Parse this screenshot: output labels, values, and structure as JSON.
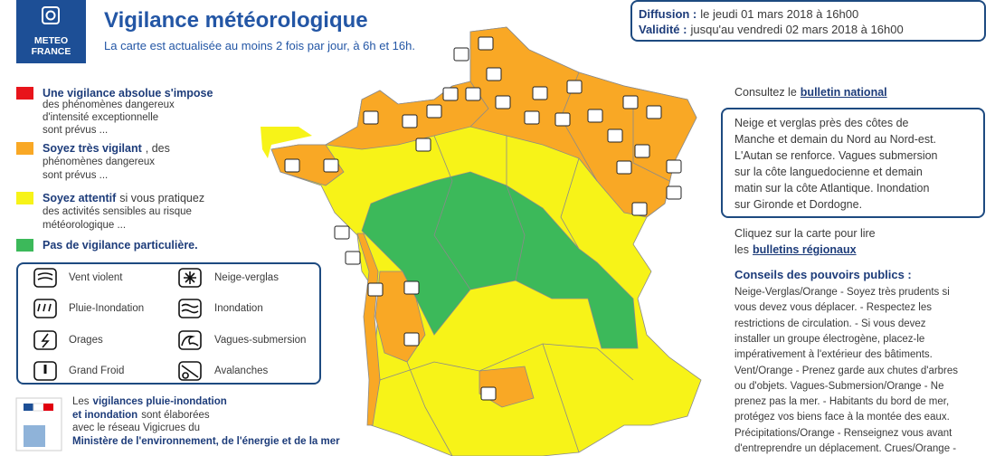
{
  "header": {
    "logo": [
      "METEO",
      "FRANCE"
    ],
    "title": "Vigilance météorologique",
    "subtitle": "La carte est actualisée au moins 2 fois par jour, à 6h et 16h."
  },
  "validity": [
    [
      {
        "text": "Diffusion :",
        "bold": true
      },
      {
        "text": "le jeudi 01 mars 2018 à 16h00"
      }
    ],
    [
      {
        "text": "Validité :",
        "bold": true
      },
      {
        "text": "jusqu'au vendredi 02 mars 2018 à 16h00"
      }
    ]
  ],
  "levels": [
    {
      "color": "#e8141b",
      "lines": [
        [
          {
            "text": "Une vigilance absolue s'impose",
            "bold": true
          }
        ],
        [
          {
            "text": "des phénomènes dangereux"
          }
        ],
        [
          {
            "text": "d'intensité exceptionnelle"
          }
        ],
        [
          {
            "text": "sont prévus ..."
          }
        ]
      ]
    },
    {
      "color": "#f9a825",
      "lines": [
        [
          {
            "text": "Soyez très vigilant",
            "bold": true
          },
          {
            "text": ", des"
          }
        ],
        [
          {
            "text": "phénomènes dangereux"
          }
        ],
        [
          {
            "text": "sont prévus ..."
          }
        ]
      ]
    },
    {
      "color": "#f7f318",
      "lines": [
        [
          {
            "text": "Soyez attentif",
            "bold": true
          },
          {
            "text": "si vous pratiquez"
          }
        ],
        [
          {
            "text": "des activités sensibles au risque"
          }
        ],
        [
          {
            "text": "météorologique ..."
          }
        ]
      ]
    },
    {
      "color": "#3cb95a",
      "lines": [
        [
          {
            "text": "Pas de vigilance particulière.",
            "bold": true
          }
        ]
      ]
    }
  ],
  "pictograms": [
    "Vent violent",
    "Pluie-Inondation",
    "Orages",
    "Grand Froid",
    "Neige-verglas",
    "Inondation",
    "Vagues-submersion",
    "Avalanches"
  ],
  "ministry": [
    [
      {
        "text": "Les"
      },
      {
        "text": "vigilances pluie-inondation",
        "bold": true
      }
    ],
    [
      {
        "text": "et inondation",
        "bold": true
      },
      {
        "text": "sont élaborées"
      }
    ],
    [
      {
        "text": "avec le réseau Vigicrues du"
      }
    ],
    [
      {
        "text": "Ministère de l'environnement, de l'énergie et de la mer",
        "bold": true
      }
    ]
  ],
  "sidebar": {
    "national": [
      {
        "text": "Consultez le"
      },
      {
        "text": "bulletin national",
        "bold": true,
        "link": true
      }
    ],
    "summary": [
      "Neige et verglas près des côtes de",
      "Manche et demain du Nord au Nord-est.",
      "L'Autan se renforce. Vagues submersion",
      "sur la côte languedocienne et demain",
      "matin sur la côte Atlantique. Inondation",
      "sur Gironde et Dordogne."
    ],
    "regional": [
      [
        {
          "text": "Cliquez sur la carte pour lire"
        }
      ],
      [
        {
          "text": "les"
        },
        {
          "text": "bulletins régionaux",
          "bold": true,
          "link": true
        }
      ]
    ],
    "advice_title": "Conseils des pouvoirs publics :",
    "advice": [
      "Neige-Verglas/Orange - Soyez très prudents si",
      "vous devez vous déplacer. - Respectez les",
      "restrictions de circulation. - Si vous devez",
      "installer un groupe électrogène, placez-le",
      "impérativement à l'extérieur des bâtiments.",
      "Vent/Orange - Prenez garde aux chutes d'arbres",
      "ou d'objets. Vagues-Submersion/Orange - Ne",
      "prenez pas la mer. - Habitants du bord de mer,",
      "protégez vos biens face à la montée des eaux.",
      "Précipitations/Orange - Renseignez vous avant",
      "d'entreprendre un déplacement. Crues/Orange -"
    ]
  }
}
